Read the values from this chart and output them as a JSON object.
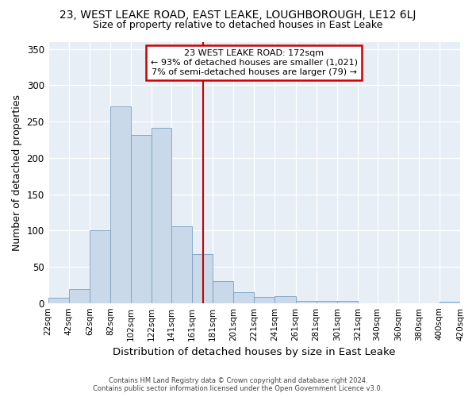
{
  "title": "23, WEST LEAKE ROAD, EAST LEAKE, LOUGHBOROUGH, LE12 6LJ",
  "subtitle": "Size of property relative to detached houses in East Leake",
  "xlabel": "Distribution of detached houses by size in East Leake",
  "ylabel": "Number of detached properties",
  "bar_color": "#c9d9ea",
  "bar_edge_color": "#7aa0c0",
  "bg_color": "#e8eef5",
  "marker_value": 172,
  "marker_color": "#cc0000",
  "annotation_line1": "23 WEST LEAKE ROAD: 172sqm",
  "annotation_line2": "← 93% of detached houses are smaller (1,021)",
  "annotation_line3": "7% of semi-detached houses are larger (79) →",
  "annotation_box_color": "#cc0000",
  "footer_line1": "Contains HM Land Registry data © Crown copyright and database right 2024.",
  "footer_line2": "Contains public sector information licensed under the Open Government Licence v3.0.",
  "bins": [
    22,
    42,
    62,
    82,
    102,
    122,
    141,
    161,
    181,
    201,
    221,
    241,
    261,
    281,
    301,
    321,
    340,
    360,
    380,
    400,
    420
  ],
  "bar_heights": [
    7,
    19,
    100,
    271,
    231,
    241,
    106,
    68,
    30,
    15,
    8,
    10,
    3,
    3,
    3,
    0,
    0,
    0,
    0,
    2
  ],
  "ylim": [
    0,
    360
  ],
  "yticks": [
    0,
    50,
    100,
    150,
    200,
    250,
    300,
    350
  ]
}
